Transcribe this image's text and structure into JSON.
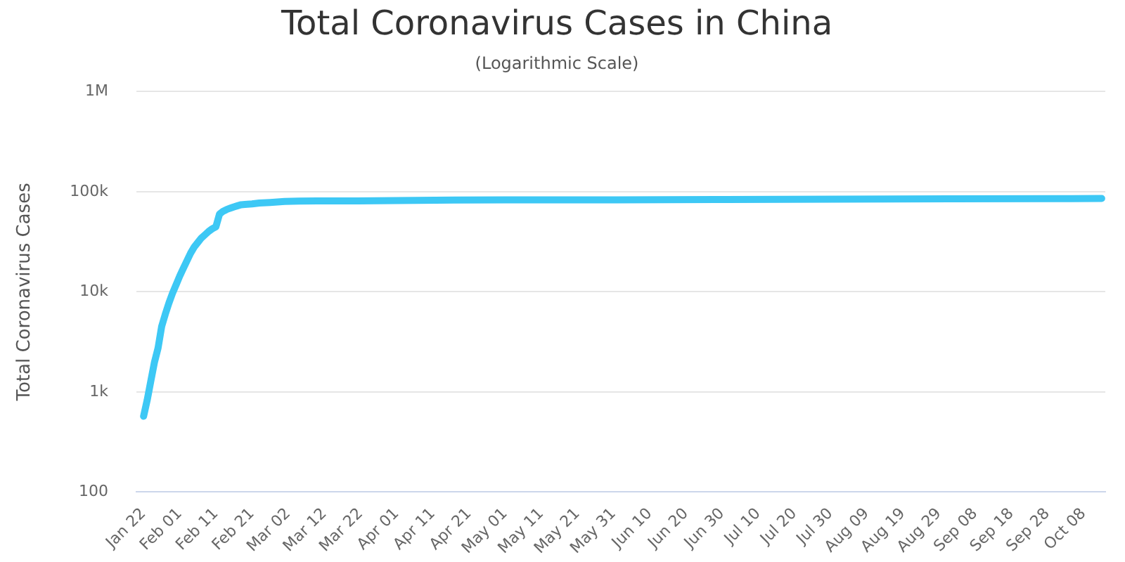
{
  "chart_data": {
    "type": "line",
    "title": "Total Coronavirus Cases in China",
    "subtitle": "(Logarithmic Scale)",
    "ylabel": "Total Coronavirus Cases",
    "x": [
      "--01-22",
      "--01-23",
      "--01-24",
      "--01-25",
      "--01-26",
      "--01-27",
      "--01-28",
      "--01-29",
      "--01-30",
      "--01-31",
      "--02-01",
      "--02-02",
      "--02-03",
      "--02-04",
      "--02-05",
      "--02-06",
      "--02-07",
      "--02-08",
      "--02-09",
      "--02-10",
      "--02-11",
      "--02-12",
      "--02-13",
      "--02-14",
      "--02-15",
      "--02-16",
      "--02-17",
      "--02-18",
      "--02-19",
      "--02-21",
      "--02-23",
      "--02-26",
      "--03-01",
      "--03-05",
      "--03-10",
      "--03-20",
      "--04-01",
      "--04-17",
      "--05-01",
      "--06-01",
      "--07-01",
      "--08-01",
      "--09-01",
      "--10-01",
      "--10-13"
    ],
    "series": [
      {
        "color": "#3dc8f5",
        "values": [
          571,
          830,
          1287,
          1975,
          2744,
          4515,
          5974,
          7711,
          9692,
          11791,
          14380,
          17205,
          20438,
          24324,
          28018,
          31161,
          34546,
          37198,
          40171,
          42638,
          44653,
          59804,
          63851,
          66492,
          68500,
          70548,
          72436,
          74185,
          74576,
          75550,
          77150,
          78191,
          79968,
          80565,
          80778,
          81008,
          81554,
          82692,
          82874,
          83017,
          83537,
          84337,
          85058,
          85414,
          85578
        ]
      }
    ],
    "log": "y",
    "ylim": [
      100,
      1000000
    ],
    "yticks": [
      100,
      {
        "value": 1000,
        "label": "1k"
      },
      {
        "value": 10000,
        "label": "10k"
      },
      {
        "value": 100000,
        "label": "100k"
      },
      {
        "value": 1000000,
        "label": "1M"
      }
    ],
    "xlim": [
      "--01-20",
      "--10-14"
    ],
    "xticks": [
      {
        "value": "--01-22",
        "label": "Jan 22"
      },
      {
        "value": "--02-01",
        "label": "Feb 01"
      },
      {
        "value": "--02-11",
        "label": "Feb 11"
      },
      {
        "value": "--02-21",
        "label": "Feb 21"
      },
      {
        "value": "--03-02",
        "label": "Mar 02"
      },
      {
        "value": "--03-12",
        "label": "Mar 12"
      },
      {
        "value": "--03-22",
        "label": "Mar 22"
      },
      {
        "value": "--04-01",
        "label": "Apr 01"
      },
      {
        "value": "--04-11",
        "label": "Apr 11"
      },
      {
        "value": "--04-21",
        "label": "Apr 21"
      },
      {
        "value": "--05-01",
        "label": "May 01"
      },
      {
        "value": "--05-11",
        "label": "May 11"
      },
      {
        "value": "--05-21",
        "label": "May 21"
      },
      {
        "value": "--05-31",
        "label": "May 31"
      },
      {
        "value": "--06-10",
        "label": "Jun 10"
      },
      {
        "value": "--06-20",
        "label": "Jun 20"
      },
      {
        "value": "--06-30",
        "label": "Jun 30"
      },
      {
        "value": "--07-10",
        "label": "Jul 10"
      },
      {
        "value": "--07-20",
        "label": "Jul 20"
      },
      {
        "value": "--07-30",
        "label": "Jul 30"
      },
      {
        "value": "--08-09",
        "label": "Aug 09"
      },
      {
        "value": "--08-19",
        "label": "Aug 19"
      },
      {
        "value": "--08-29",
        "label": "Aug 29"
      },
      {
        "value": "--09-08",
        "label": "Sep 08"
      },
      {
        "value": "--09-18",
        "label": "Sep 18"
      },
      {
        "value": "--09-28",
        "label": "Sep 28"
      },
      {
        "value": "--10-08",
        "label": "Oct 08"
      }
    ],
    "grid": "y",
    "legend": false,
    "marker": "none",
    "line_style": "solid"
  }
}
